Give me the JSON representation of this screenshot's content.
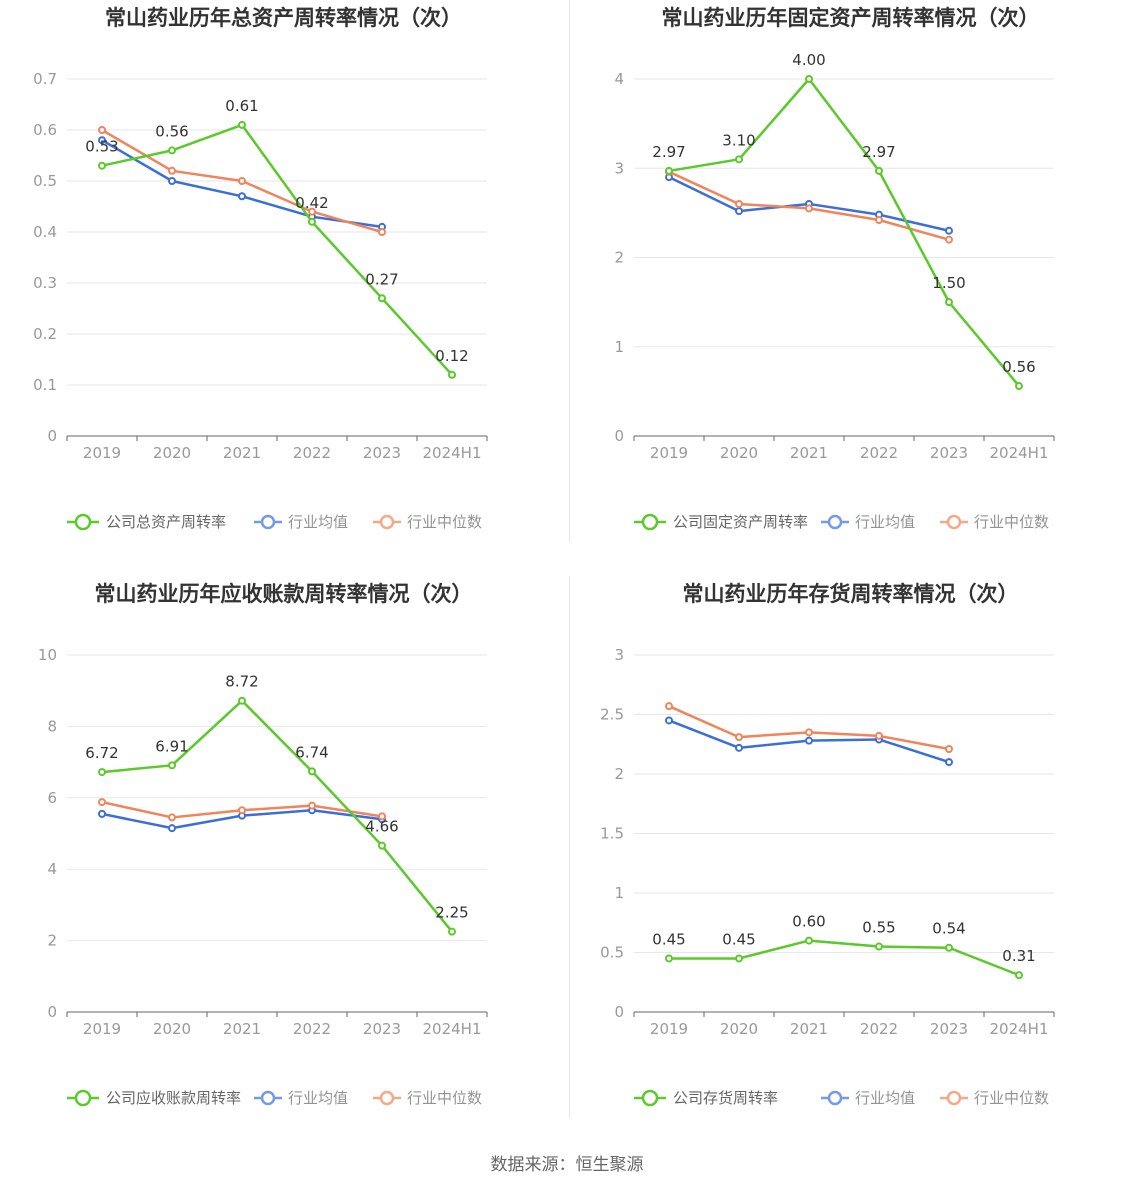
{
  "source": "数据来源：恒生聚源",
  "colors": {
    "company": "#5ac92a",
    "avg": "#3b6fd8",
    "median": "#f0845a",
    "grid": "#e6e6ee",
    "axis": "#666666"
  },
  "chart_data": [
    {
      "type": "line",
      "title": "常山药业历年总资产周转率情况（次）",
      "categories": [
        "2019",
        "2020",
        "2021",
        "2022",
        "2023",
        "2024H1"
      ],
      "ylim": [
        0,
        0.7
      ],
      "yticks": [
        "0",
        "0.1",
        "0.2",
        "0.3",
        "0.4",
        "0.5",
        "0.6",
        "0.7"
      ],
      "grid": true,
      "legend_position": "bottom",
      "series": [
        {
          "name": "公司总资产周转率",
          "role": "company",
          "values": [
            0.53,
            0.56,
            0.61,
            0.42,
            0.27,
            0.12
          ],
          "labels": [
            "0.53",
            "0.56",
            "0.61",
            "0.42",
            "0.27",
            "0.12"
          ]
        },
        {
          "name": "行业均值",
          "role": "avg",
          "values": [
            0.58,
            0.5,
            0.47,
            0.43,
            0.41,
            null
          ]
        },
        {
          "name": "行业中位数",
          "role": "median",
          "values": [
            0.6,
            0.52,
            0.5,
            0.44,
            0.4,
            null
          ]
        }
      ]
    },
    {
      "type": "line",
      "title": "常山药业历年固定资产周转率情况（次）",
      "categories": [
        "2019",
        "2020",
        "2021",
        "2022",
        "2023",
        "2024H1"
      ],
      "ylim": [
        0,
        4
      ],
      "yticks": [
        "0",
        "1",
        "2",
        "3",
        "4"
      ],
      "grid": true,
      "legend_position": "bottom",
      "series": [
        {
          "name": "公司固定资产周转率",
          "role": "company",
          "values": [
            2.97,
            3.1,
            4.0,
            2.97,
            1.5,
            0.56
          ],
          "labels": [
            "2.97",
            "3.10",
            "4.00",
            "2.97",
            "1.50",
            "0.56"
          ]
        },
        {
          "name": "行业均值",
          "role": "avg",
          "values": [
            2.9,
            2.52,
            2.6,
            2.48,
            2.3,
            null
          ]
        },
        {
          "name": "行业中位数",
          "role": "median",
          "values": [
            2.96,
            2.6,
            2.55,
            2.42,
            2.2,
            null
          ]
        }
      ]
    },
    {
      "type": "line",
      "title": "常山药业历年应收账款周转率情况（次）",
      "categories": [
        "2019",
        "2020",
        "2021",
        "2022",
        "2023",
        "2024H1"
      ],
      "ylim": [
        0,
        10
      ],
      "yticks": [
        "0",
        "2",
        "4",
        "6",
        "8",
        "10"
      ],
      "grid": true,
      "legend_position": "bottom",
      "series": [
        {
          "name": "公司应收账款周转率",
          "role": "company",
          "values": [
            6.72,
            6.91,
            8.72,
            6.74,
            4.66,
            2.25
          ],
          "labels": [
            "6.72",
            "6.91",
            "8.72",
            "6.74",
            "4.66",
            "2.25"
          ]
        },
        {
          "name": "行业均值",
          "role": "avg",
          "values": [
            5.55,
            5.15,
            5.5,
            5.65,
            5.4,
            null
          ]
        },
        {
          "name": "行业中位数",
          "role": "median",
          "values": [
            5.88,
            5.45,
            5.65,
            5.78,
            5.48,
            null
          ]
        }
      ]
    },
    {
      "type": "line",
      "title": "常山药业历年存货周转率情况（次）",
      "categories": [
        "2019",
        "2020",
        "2021",
        "2022",
        "2023",
        "2024H1"
      ],
      "ylim": [
        0,
        3
      ],
      "yticks": [
        "0",
        "0.5",
        "1",
        "1.5",
        "2",
        "2.5",
        "3"
      ],
      "grid": true,
      "legend_position": "bottom",
      "series": [
        {
          "name": "公司存货周转率",
          "role": "company",
          "values": [
            0.45,
            0.45,
            0.6,
            0.55,
            0.54,
            0.31
          ],
          "labels": [
            "0.45",
            "0.45",
            "0.60",
            "0.55",
            "0.54",
            "0.31"
          ]
        },
        {
          "name": "行业均值",
          "role": "avg",
          "values": [
            2.45,
            2.22,
            2.28,
            2.29,
            2.1,
            null
          ]
        },
        {
          "name": "行业中位数",
          "role": "median",
          "values": [
            2.57,
            2.31,
            2.35,
            2.32,
            2.21,
            null
          ]
        }
      ]
    }
  ]
}
